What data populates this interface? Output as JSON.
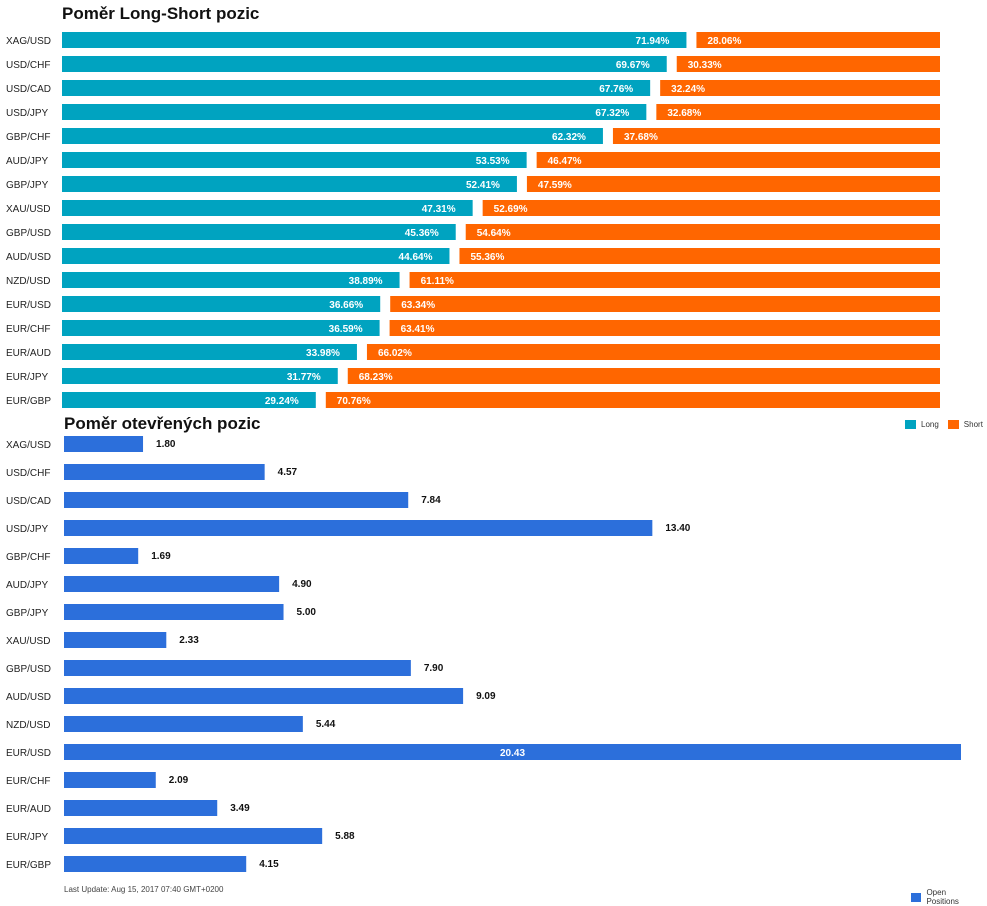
{
  "colors": {
    "long": "#00a3c0",
    "short": "#ff6600",
    "open": "#2c6fdb"
  },
  "footer": {
    "last_update": "Last Update: Aug 15, 2017 07:40 GMT+0200"
  },
  "chart_data": [
    {
      "type": "bar",
      "stacked": true,
      "orientation": "horizontal",
      "title": "Poměr Long-Short pozic",
      "categories": [
        "XAG/USD",
        "USD/CHF",
        "USD/CAD",
        "USD/JPY",
        "GBP/CHF",
        "AUD/JPY",
        "GBP/JPY",
        "XAU/USD",
        "GBP/USD",
        "AUD/USD",
        "NZD/USD",
        "EUR/USD",
        "EUR/CHF",
        "EUR/AUD",
        "EUR/JPY",
        "EUR/GBP"
      ],
      "series": [
        {
          "name": "Long",
          "values": [
            71.94,
            69.67,
            67.76,
            67.32,
            62.32,
            53.53,
            52.41,
            47.31,
            45.36,
            44.64,
            38.89,
            36.66,
            36.59,
            33.98,
            31.77,
            29.24
          ],
          "labels": [
            "71.94%",
            "69.67%",
            "67.76%",
            "67.32%",
            "62.32%",
            "53.53%",
            "52.41%",
            "47.31%",
            "45.36%",
            "44.64%",
            "38.89%",
            "36.66%",
            "36.59%",
            "33.98%",
            "31.77%",
            "29.24%"
          ]
        },
        {
          "name": "Short",
          "values": [
            28.06,
            30.33,
            32.24,
            32.68,
            37.68,
            46.47,
            47.59,
            52.69,
            54.64,
            55.36,
            61.11,
            63.34,
            63.41,
            66.02,
            68.23,
            70.76
          ],
          "labels": [
            "28.06%",
            "30.33%",
            "32.24%",
            "32.68%",
            "37.68%",
            "46.47%",
            "47.59%",
            "52.69%",
            "54.64%",
            "55.36%",
            "61.11%",
            "63.34%",
            "63.41%",
            "66.02%",
            "68.23%",
            "70.76%"
          ]
        }
      ],
      "xlim": [
        0,
        100
      ],
      "legend": "bottom-right"
    },
    {
      "type": "bar",
      "orientation": "horizontal",
      "title": "Poměr otevřených pozic",
      "categories": [
        "XAG/USD",
        "USD/CHF",
        "USD/CAD",
        "USD/JPY",
        "GBP/CHF",
        "AUD/JPY",
        "GBP/JPY",
        "XAU/USD",
        "GBP/USD",
        "AUD/USD",
        "NZD/USD",
        "EUR/USD",
        "EUR/CHF",
        "EUR/AUD",
        "EUR/JPY",
        "EUR/GBP"
      ],
      "series": [
        {
          "name": "Open Positions",
          "values": [
            1.8,
            4.57,
            7.84,
            13.4,
            1.69,
            4.9,
            5.0,
            2.33,
            7.9,
            9.09,
            5.44,
            20.43,
            2.09,
            3.49,
            5.88,
            4.15
          ],
          "labels": [
            "1.80",
            "4.57",
            "7.84",
            "13.40",
            "1.69",
            "4.90",
            "5.00",
            "2.33",
            "7.90",
            "9.09",
            "5.44",
            "20.43",
            "2.09",
            "3.49",
            "5.88",
            "4.15"
          ]
        }
      ],
      "xlim": [
        0,
        20.43
      ],
      "legend": "bottom-right"
    }
  ]
}
